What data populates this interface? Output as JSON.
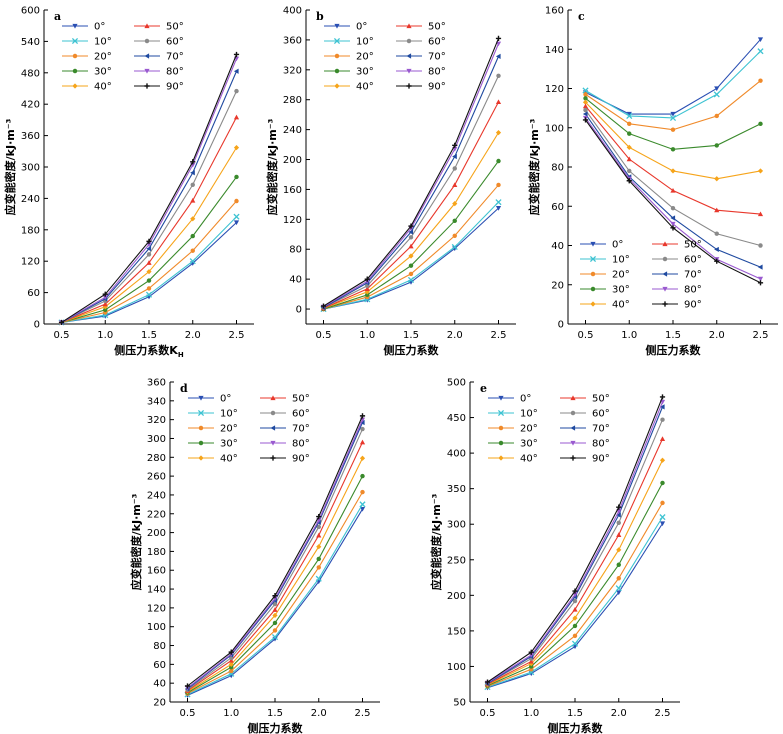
{
  "series_styles": [
    {
      "name": "0°",
      "color": "#2a4fb3",
      "marker": "triangle-down"
    },
    {
      "name": "10°",
      "color": "#3ec3d2",
      "marker": "x"
    },
    {
      "name": "20°",
      "color": "#f08a2a",
      "marker": "circle"
    },
    {
      "name": "30°",
      "color": "#3a8a2c",
      "marker": "circle"
    },
    {
      "name": "40°",
      "color": "#f6a41a",
      "marker": "diamond"
    },
    {
      "name": "50°",
      "color": "#e8382c",
      "marker": "triangle-up"
    },
    {
      "name": "60°",
      "color": "#8a8a8a",
      "marker": "circle"
    },
    {
      "name": "70°",
      "color": "#1f4aa0",
      "marker": "triangle-left"
    },
    {
      "name": "80°",
      "color": "#9a5ad0",
      "marker": "triangle-down"
    },
    {
      "name": "90°",
      "color": "#111111",
      "marker": "plus"
    }
  ],
  "chart_data": [
    {
      "type": "line",
      "panel_label": "a",
      "xlabel": "侧压力系数K",
      "xlabel_sub": "H",
      "ylabel": "应变能密度/kJ·m⁻³",
      "x": [
        0.5,
        1.0,
        1.5,
        2.0,
        2.5
      ],
      "xticks": [
        "0.5",
        "1.0",
        "1.5",
        "2.0",
        "2.5"
      ],
      "ylim": [
        0,
        600
      ],
      "yticks": [
        "0",
        "60",
        "120",
        "180",
        "240",
        "300",
        "360",
        "420",
        "480",
        "540",
        "600"
      ],
      "legend": "top-left",
      "series": [
        {
          "name": "0°",
          "values": [
            3,
            15,
            52,
            116,
            194
          ]
        },
        {
          "name": "10°",
          "values": [
            3,
            17,
            56,
            120,
            205
          ]
        },
        {
          "name": "20°",
          "values": [
            3,
            22,
            68,
            140,
            235
          ]
        },
        {
          "name": "30°",
          "values": [
            3,
            27,
            83,
            168,
            281
          ]
        },
        {
          "name": "40°",
          "values": [
            3,
            33,
            100,
            201,
            337
          ]
        },
        {
          "name": "50°",
          "values": [
            3,
            38,
            117,
            236,
            395
          ]
        },
        {
          "name": "60°",
          "values": [
            3,
            44,
            133,
            266,
            445
          ]
        },
        {
          "name": "70°",
          "values": [
            3,
            48,
            144,
            289,
            483
          ]
        },
        {
          "name": "80°",
          "values": [
            3,
            51,
            152,
            304,
            507
          ]
        },
        {
          "name": "90°",
          "values": [
            3,
            57,
            158,
            310,
            515
          ]
        }
      ]
    },
    {
      "type": "line",
      "panel_label": "b",
      "xlabel": "侧压力系数",
      "ylabel": "应变能密度/kJ·m⁻³",
      "x": [
        0.5,
        1.0,
        1.5,
        2.0,
        2.5
      ],
      "xticks": [
        "0.5",
        "1.0",
        "1.5",
        "2.0",
        "2.5"
      ],
      "ylim": [
        -20,
        400
      ],
      "yticks": [
        "0",
        "40",
        "80",
        "120",
        "160",
        "200",
        "240",
        "280",
        "320",
        "360",
        "400"
      ],
      "legend": "top-left",
      "series": [
        {
          "name": "0°",
          "values": [
            0,
            12,
            36,
            81,
            135
          ]
        },
        {
          "name": "10°",
          "values": [
            0,
            13,
            39,
            83,
            143
          ]
        },
        {
          "name": "20°",
          "values": [
            0,
            16,
            47,
            98,
            166
          ]
        },
        {
          "name": "30°",
          "values": [
            0,
            19,
            58,
            118,
            198
          ]
        },
        {
          "name": "40°",
          "values": [
            1,
            23,
            71,
            141,
            236
          ]
        },
        {
          "name": "50°",
          "values": [
            1,
            27,
            84,
            166,
            277
          ]
        },
        {
          "name": "60°",
          "values": [
            2,
            31,
            96,
            188,
            312
          ]
        },
        {
          "name": "70°",
          "values": [
            2,
            35,
            103,
            204,
            338
          ]
        },
        {
          "name": "80°",
          "values": [
            3,
            37,
            108,
            214,
            355
          ]
        },
        {
          "name": "90°",
          "values": [
            4,
            40,
            111,
            219,
            362
          ]
        }
      ]
    },
    {
      "type": "line",
      "panel_label": "c",
      "xlabel": "侧压力系数",
      "ylabel": "应变能密度/kJ·m⁻³",
      "x": [
        0.5,
        1.0,
        1.5,
        2.0,
        2.5
      ],
      "xticks": [
        "0.5",
        "1.0",
        "1.5",
        "2.0",
        "2.5"
      ],
      "ylim": [
        0,
        160
      ],
      "yticks": [
        "0",
        "20",
        "40",
        "60",
        "80",
        "100",
        "120",
        "140",
        "160"
      ],
      "legend": "bottom-left",
      "series": [
        {
          "name": "0°",
          "values": [
            118,
            107,
            107,
            120,
            145
          ]
        },
        {
          "name": "10°",
          "values": [
            119,
            106,
            105,
            117,
            139
          ]
        },
        {
          "name": "20°",
          "values": [
            117,
            102,
            99,
            106,
            124
          ]
        },
        {
          "name": "30°",
          "values": [
            115,
            97,
            89,
            91,
            102
          ]
        },
        {
          "name": "40°",
          "values": [
            113,
            90,
            78,
            74,
            78
          ]
        },
        {
          "name": "50°",
          "values": [
            111,
            84,
            68,
            58,
            56
          ]
        },
        {
          "name": "60°",
          "values": [
            109,
            78,
            59,
            46,
            40
          ]
        },
        {
          "name": "70°",
          "values": [
            107,
            75,
            54,
            38,
            29
          ]
        },
        {
          "name": "80°",
          "values": [
            105,
            74,
            51,
            33,
            23
          ]
        },
        {
          "name": "90°",
          "values": [
            104,
            73,
            49,
            32,
            21
          ]
        }
      ]
    },
    {
      "type": "line",
      "panel_label": "d",
      "xlabel": "侧压力系数",
      "ylabel": "应变能密度/kJ·m⁻³",
      "x": [
        0.5,
        1.0,
        1.5,
        2.0,
        2.5
      ],
      "xticks": [
        "0.5",
        "1.0",
        "1.5",
        "2.0",
        "2.5"
      ],
      "ylim": [
        20,
        360
      ],
      "yticks": [
        "20",
        "40",
        "60",
        "80",
        "100",
        "120",
        "140",
        "160",
        "180",
        "200",
        "220",
        "240",
        "260",
        "280",
        "300",
        "320",
        "340",
        "360"
      ],
      "legend": "top-left",
      "series": [
        {
          "name": "0°",
          "values": [
            27,
            48,
            87,
            148,
            225
          ]
        },
        {
          "name": "10°",
          "values": [
            28,
            50,
            89,
            151,
            230
          ]
        },
        {
          "name": "20°",
          "values": [
            29,
            53,
            96,
            163,
            243
          ]
        },
        {
          "name": "30°",
          "values": [
            30,
            57,
            104,
            172,
            260
          ]
        },
        {
          "name": "40°",
          "values": [
            31,
            60,
            112,
            185,
            279
          ]
        },
        {
          "name": "50°",
          "values": [
            32,
            64,
            118,
            197,
            296
          ]
        },
        {
          "name": "60°",
          "values": [
            33,
            67,
            124,
            206,
            310
          ]
        },
        {
          "name": "70°",
          "values": [
            34,
            70,
            128,
            211,
            317
          ]
        },
        {
          "name": "80°",
          "values": [
            35,
            71,
            130,
            213,
            320
          ]
        },
        {
          "name": "90°",
          "values": [
            37,
            73,
            133,
            217,
            324
          ]
        }
      ]
    },
    {
      "type": "line",
      "panel_label": "e",
      "xlabel": "侧压力系数",
      "ylabel": "应变能密度/kJ·m⁻³",
      "x": [
        0.5,
        1.0,
        1.5,
        2.0,
        2.5
      ],
      "xticks": [
        "0.5",
        "1.0",
        "1.5",
        "2.0",
        "2.5"
      ],
      "ylim": [
        50,
        500
      ],
      "yticks": [
        "50",
        "100",
        "150",
        "200",
        "250",
        "300",
        "350",
        "400",
        "450",
        "500"
      ],
      "legend": "top-left",
      "series": [
        {
          "name": "0°",
          "values": [
            70,
            90,
            128,
            204,
            301
          ]
        },
        {
          "name": "10°",
          "values": [
            71,
            92,
            132,
            210,
            310
          ]
        },
        {
          "name": "20°",
          "values": [
            72,
            96,
            143,
            224,
            330
          ]
        },
        {
          "name": "30°",
          "values": [
            73,
            100,
            157,
            243,
            358
          ]
        },
        {
          "name": "40°",
          "values": [
            74,
            104,
            168,
            264,
            390
          ]
        },
        {
          "name": "50°",
          "values": [
            75,
            107,
            180,
            285,
            420
          ]
        },
        {
          "name": "60°",
          "values": [
            76,
            111,
            192,
            302,
            447
          ]
        },
        {
          "name": "70°",
          "values": [
            76,
            114,
            198,
            313,
            465
          ]
        },
        {
          "name": "80°",
          "values": [
            77,
            116,
            201,
            318,
            472
          ]
        },
        {
          "name": "90°",
          "values": [
            78,
            120,
            206,
            324,
            479
          ]
        }
      ]
    }
  ]
}
